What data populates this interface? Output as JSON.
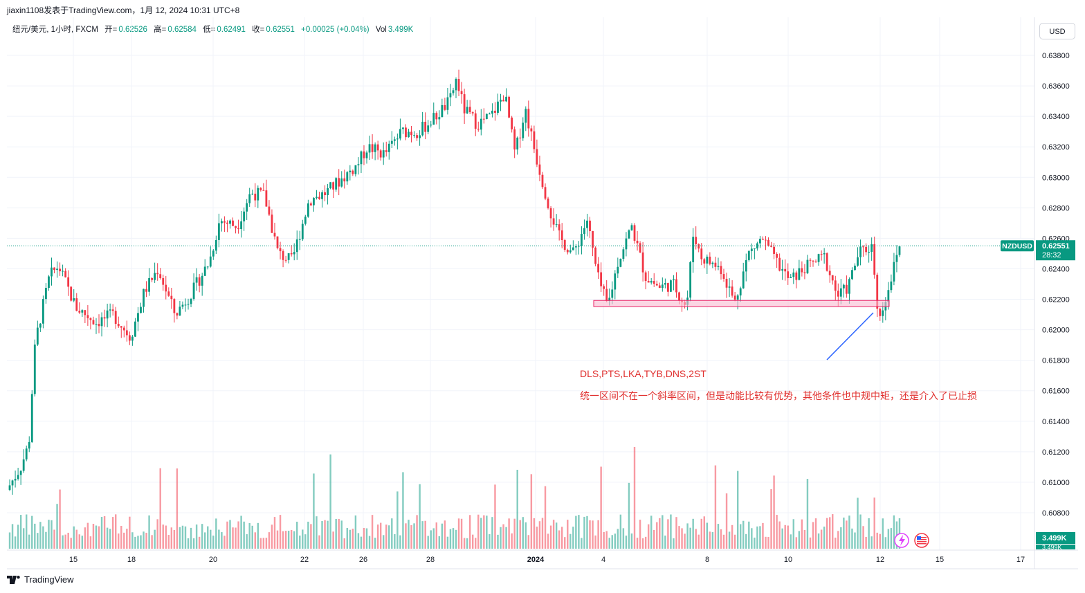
{
  "header": {
    "publisher": "jiaxin1108发表于TradingView.com，1月 12, 2024 10:31 UTC+8"
  },
  "legend": {
    "symbol": "纽元/美元, 1小时, FXCM",
    "open_label": "开=",
    "open": "0.62526",
    "high_label": "高=",
    "high": "0.62584",
    "low_label": "低=",
    "low": "0.62491",
    "close_label": "收=",
    "close": "0.62551",
    "change": "+0.00025 (+0.04%)",
    "vol_label": "Vol",
    "vol": "3.499K"
  },
  "currency_button": "USD",
  "annotations": {
    "line1": "DLS,PTS,LKA,TYB,DNS,2ST",
    "line2": "统一区间不在一个斜率区间，但是动能比较有优势，其他条件也中规中矩，还是介入了已止损"
  },
  "footer": {
    "brand": "TradingView"
  },
  "colors": {
    "up": "#089981",
    "down": "#f23645",
    "zone": "#f8bbd0",
    "zone_border": "#e91e63",
    "arrow": "#2962ff",
    "annotation": "#e0302f"
  },
  "chart_data": {
    "type": "candlestick",
    "symbol": "NZDUSD",
    "timeframe": "1H",
    "y_ticks": [
      "0.63800",
      "0.63600",
      "0.63400",
      "0.63200",
      "0.63000",
      "0.62800",
      "0.62600",
      "0.62400",
      "0.62200",
      "0.62000",
      "0.61800",
      "0.61600",
      "0.61400",
      "0.61200",
      "0.61000",
      "0.60800"
    ],
    "ylim": [
      0.6074,
      0.6394
    ],
    "x_ticks": [
      "15",
      "18",
      "20",
      "22",
      "26",
      "28",
      "2024",
      "4",
      "8",
      "10",
      "12",
      "15",
      "17"
    ],
    "last_price_label": "NZDUSD",
    "last_price": "0.62551",
    "countdown": "28:32",
    "volume_label": "3.499K",
    "volume_label_2": "3.499K",
    "price_path": [
      [
        0,
        0.6095
      ],
      [
        0.02,
        0.611
      ],
      [
        0.032,
        0.6125
      ],
      [
        0.04,
        0.6185
      ],
      [
        0.045,
        0.62
      ],
      [
        0.062,
        0.6235
      ],
      [
        0.075,
        0.6242
      ],
      [
        0.1,
        0.6215
      ],
      [
        0.13,
        0.6205
      ],
      [
        0.155,
        0.621
      ],
      [
        0.18,
        0.6195
      ],
      [
        0.2,
        0.6225
      ],
      [
        0.22,
        0.624
      ],
      [
        0.245,
        0.621
      ],
      [
        0.27,
        0.6225
      ],
      [
        0.295,
        0.6245
      ],
      [
        0.31,
        0.6272
      ],
      [
        0.335,
        0.6268
      ],
      [
        0.355,
        0.629
      ],
      [
        0.375,
        0.6288
      ],
      [
        0.395,
        0.625
      ],
      [
        0.415,
        0.6245
      ],
      [
        0.44,
        0.6285
      ],
      [
        0.465,
        0.629
      ],
      [
        0.49,
        0.63
      ],
      [
        0.51,
        0.6308
      ],
      [
        0.525,
        0.632
      ],
      [
        0.55,
        0.6315
      ],
      [
        0.575,
        0.633
      ],
      [
        0.6,
        0.633
      ],
      [
        0.625,
        0.634
      ],
      [
        0.645,
        0.635
      ],
      [
        0.655,
        0.6365
      ],
      [
        0.665,
        0.6345
      ],
      [
        0.685,
        0.6335
      ],
      [
        0.705,
        0.634
      ],
      [
        0.725,
        0.6355
      ],
      [
        0.74,
        0.6315
      ],
      [
        0.755,
        0.6345
      ],
      [
        0.77,
        0.6315
      ],
      [
        0.79,
        0.628
      ],
      [
        0.805,
        0.626
      ],
      [
        0.825,
        0.625
      ],
      [
        0.845,
        0.6272
      ],
      [
        0.86,
        0.6235
      ],
      [
        0.875,
        0.6215
      ],
      [
        0.89,
        0.6245
      ],
      [
        0.91,
        0.6268
      ],
      [
        0.93,
        0.6235
      ],
      [
        0.95,
        0.6228
      ],
      [
        0.97,
        0.623
      ],
      [
        0.99,
        0.6215
      ],
      [
        1.0,
        0.6265
      ],
      [
        1.01,
        0.6248
      ],
      [
        1.04,
        0.624
      ],
      [
        1.06,
        0.6218
      ],
      [
        1.08,
        0.625
      ],
      [
        1.1,
        0.626
      ],
      [
        1.12,
        0.6245
      ],
      [
        1.14,
        0.6232
      ],
      [
        1.16,
        0.624
      ],
      [
        1.19,
        0.6248
      ],
      [
        1.21,
        0.6222
      ],
      [
        1.225,
        0.6228
      ],
      [
        1.24,
        0.625
      ],
      [
        1.26,
        0.6255
      ],
      [
        1.27,
        0.6205
      ],
      [
        1.28,
        0.6222
      ],
      [
        1.29,
        0.6238
      ],
      [
        1.3,
        0.6255
      ]
    ],
    "support_zone": [
      0.6215,
      0.6219
    ]
  }
}
